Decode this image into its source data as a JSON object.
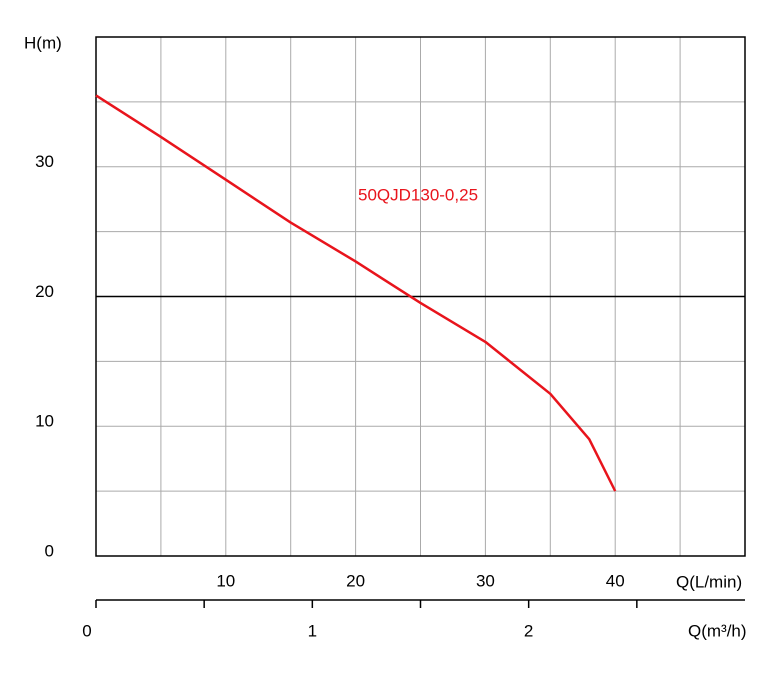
{
  "chart_data": {
    "type": "line",
    "ylabel": "H(m)",
    "xlabel": "Q(L/min)",
    "x2label": "Q(m³/h)",
    "annotation": "50QJD130-0,25",
    "xlim": [
      0,
      50
    ],
    "xticks": [
      10,
      20,
      30,
      40
    ],
    "xgrid": [
      5,
      10,
      15,
      20,
      25,
      30,
      35,
      40,
      45
    ],
    "ylim": [
      0,
      40
    ],
    "yticks": [
      0,
      10,
      20,
      30
    ],
    "ygrid": [
      5,
      10,
      15,
      25,
      30,
      35
    ],
    "hline": 20,
    "x2lim": [
      0,
      3
    ],
    "x2ticks": [
      0,
      1,
      2
    ],
    "x2minor": [
      0.5,
      1.5,
      2.5
    ],
    "series": [
      {
        "color": "#e8141c",
        "x": [
          0,
          5,
          10,
          15,
          20,
          25,
          30,
          35,
          38,
          40
        ],
        "values": [
          35.5,
          32.3,
          29,
          25.7,
          22.7,
          19.5,
          16.5,
          12.5,
          9,
          5
        ]
      }
    ]
  }
}
